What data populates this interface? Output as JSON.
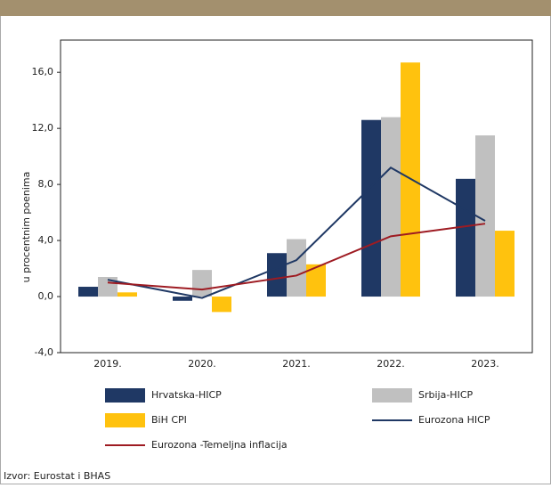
{
  "chart_data": {
    "type": "bar",
    "y_label": "u procentnim poenima",
    "source": "Izvor: Eurostat i BHAS",
    "categories": [
      "2019.",
      "2020.",
      "2021.",
      "2022.",
      "2023."
    ],
    "series": [
      {
        "name": "Hrvatska-HICP",
        "color": "#1f3864",
        "type": "bar",
        "values": [
          0.7,
          -0.3,
          3.1,
          12.6,
          8.4
        ]
      },
      {
        "name": "Srbija-HICP",
        "color": "#c0c0c0",
        "type": "bar",
        "values": [
          1.4,
          1.9,
          4.1,
          12.8,
          11.5
        ]
      },
      {
        "name": "BiH CPI",
        "color": "#ffc20e",
        "type": "bar",
        "values": [
          0.3,
          -1.1,
          2.3,
          16.7,
          4.7
        ]
      },
      {
        "name": "Eurozona HICP",
        "color": "#1f3864",
        "type": "line",
        "values": [
          1.2,
          -0.1,
          2.6,
          9.2,
          5.4
        ]
      },
      {
        "name": "Eurozona -Temeljna inflacija",
        "color": "#9e1b22",
        "type": "line",
        "values": [
          1.0,
          0.5,
          1.5,
          4.3,
          5.2
        ]
      }
    ],
    "ylim": [
      -4,
      18.3
    ],
    "yticks": [
      {
        "value": -4,
        "label": "-4,0"
      },
      {
        "value": 0,
        "label": "0,0"
      },
      {
        "value": 4,
        "label": "4,0"
      },
      {
        "value": 8,
        "label": "8,0"
      },
      {
        "value": 12,
        "label": "12,0"
      },
      {
        "value": 16,
        "label": "16,0"
      }
    ]
  }
}
